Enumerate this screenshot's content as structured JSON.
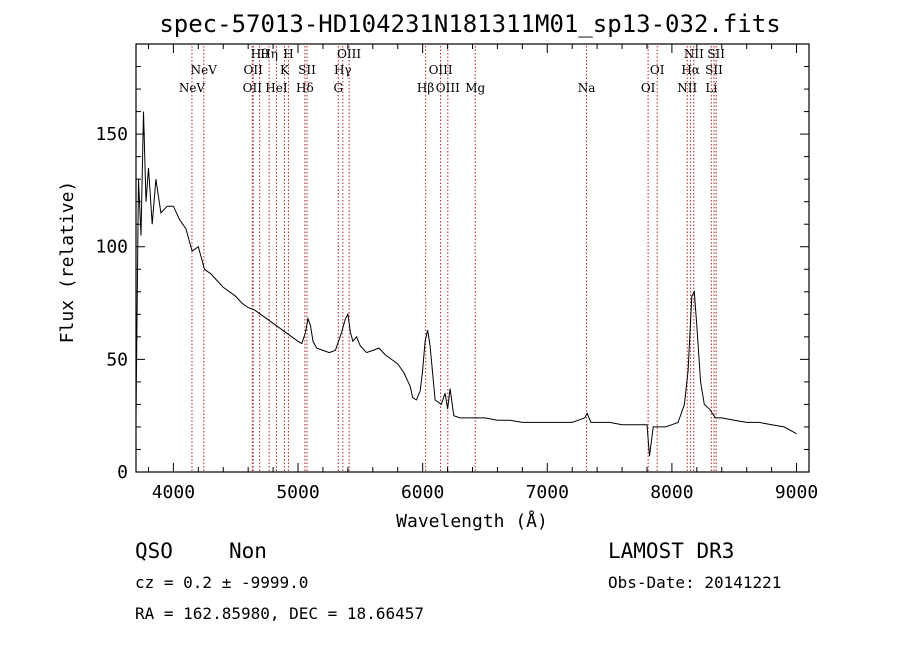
{
  "chart_data": {
    "type": "line",
    "title": "spec-57013-HD104231N181311M01_sp13-032.fits",
    "xlabel": "Wavelength (Å)",
    "ylabel": "Flux (relative)",
    "xlim": [
      3700,
      9100
    ],
    "ylim": [
      0,
      190
    ],
    "xticks": [
      4000,
      5000,
      6000,
      7000,
      8000,
      9000
    ],
    "yticks": [
      0,
      50,
      100,
      150
    ],
    "series": [
      {
        "name": "flux",
        "x": [
          3700,
          3720,
          3740,
          3760,
          3780,
          3800,
          3830,
          3860,
          3900,
          3950,
          4000,
          4050,
          4100,
          4150,
          4200,
          4250,
          4300,
          4350,
          4400,
          4450,
          4500,
          4550,
          4600,
          4650,
          4700,
          4750,
          4800,
          4850,
          4900,
          4950,
          5000,
          5030,
          5060,
          5080,
          5100,
          5120,
          5150,
          5200,
          5250,
          5300,
          5350,
          5380,
          5400,
          5420,
          5440,
          5470,
          5500,
          5550,
          5600,
          5650,
          5700,
          5750,
          5800,
          5850,
          5900,
          5920,
          5950,
          5980,
          6000,
          6020,
          6040,
          6060,
          6080,
          6100,
          6150,
          6180,
          6200,
          6220,
          6250,
          6300,
          6400,
          6500,
          6600,
          6700,
          6800,
          6900,
          7000,
          7100,
          7200,
          7250,
          7300,
          7320,
          7350,
          7400,
          7500,
          7600,
          7700,
          7800,
          7820,
          7850,
          7900,
          7950,
          8000,
          8050,
          8100,
          8130,
          8160,
          8180,
          8200,
          8230,
          8260,
          8300,
          8350,
          8400,
          8500,
          8600,
          8700,
          8800,
          8900,
          9000
        ],
        "y": [
          25,
          130,
          105,
          160,
          120,
          135,
          110,
          130,
          115,
          118,
          118,
          112,
          108,
          98,
          100,
          90,
          88,
          85,
          82,
          80,
          78,
          75,
          73,
          72,
          70,
          68,
          66,
          64,
          62,
          60,
          58,
          57,
          62,
          68,
          65,
          58,
          55,
          54,
          53,
          54,
          62,
          68,
          70,
          62,
          58,
          60,
          56,
          53,
          54,
          55,
          52,
          50,
          48,
          44,
          38,
          33,
          32,
          36,
          45,
          58,
          63,
          56,
          44,
          32,
          30,
          35,
          28,
          37,
          25,
          24,
          24,
          24,
          23,
          23,
          22,
          22,
          22,
          22,
          22,
          23,
          24,
          26,
          22,
          22,
          22,
          21,
          21,
          21,
          7,
          20,
          20,
          20,
          21,
          22,
          30,
          45,
          78,
          80,
          65,
          40,
          30,
          28,
          24,
          24,
          23,
          22,
          22,
          21,
          20,
          17
        ]
      }
    ],
    "lines": [
      {
        "name": "NeV",
        "x": 4149
      },
      {
        "name": "NeV",
        "x": 4244
      },
      {
        "name": "OII",
        "x": 4633
      },
      {
        "name": "OII",
        "x": 4640
      },
      {
        "name": "Hθ",
        "x": 4692
      },
      {
        "name": "Hη",
        "x": 4768
      },
      {
        "name": "HeI",
        "x": 4827
      },
      {
        "name": "K",
        "x": 4891
      },
      {
        "name": "H",
        "x": 4923
      },
      {
        "name": "Hδ",
        "x": 5055
      },
      {
        "name": "SII",
        "x": 5072
      },
      {
        "name": "G",
        "x": 5323
      },
      {
        "name": "Hγ",
        "x": 5359
      },
      {
        "name": "OIII",
        "x": 5410
      },
      {
        "name": "Hβ",
        "x": 6024
      },
      {
        "name": "OIII",
        "x": 6144
      },
      {
        "name": "OIII",
        "x": 6202
      },
      {
        "name": "Mg",
        "x": 6422
      },
      {
        "name": "Na",
        "x": 7315
      },
      {
        "name": "OI",
        "x": 7809
      },
      {
        "name": "OI",
        "x": 7882
      },
      {
        "name": "NII",
        "x": 8123
      },
      {
        "name": "Hα",
        "x": 8150
      },
      {
        "name": "NII",
        "x": 8176
      },
      {
        "name": "Li",
        "x": 8316
      },
      {
        "name": "SII",
        "x": 8338
      },
      {
        "name": "SII",
        "x": 8355
      }
    ]
  },
  "info": {
    "class": "QSO",
    "subclass": "Non",
    "survey": "LAMOST DR3",
    "cz": "cz = 0.2 ± -9999.0",
    "obsdate": "Obs-Date: 20141221",
    "radec": "RA = 162.85980, DEC =  18.66457"
  },
  "colors": {
    "marker_line": "#b22222",
    "spectrum": "#000000"
  }
}
